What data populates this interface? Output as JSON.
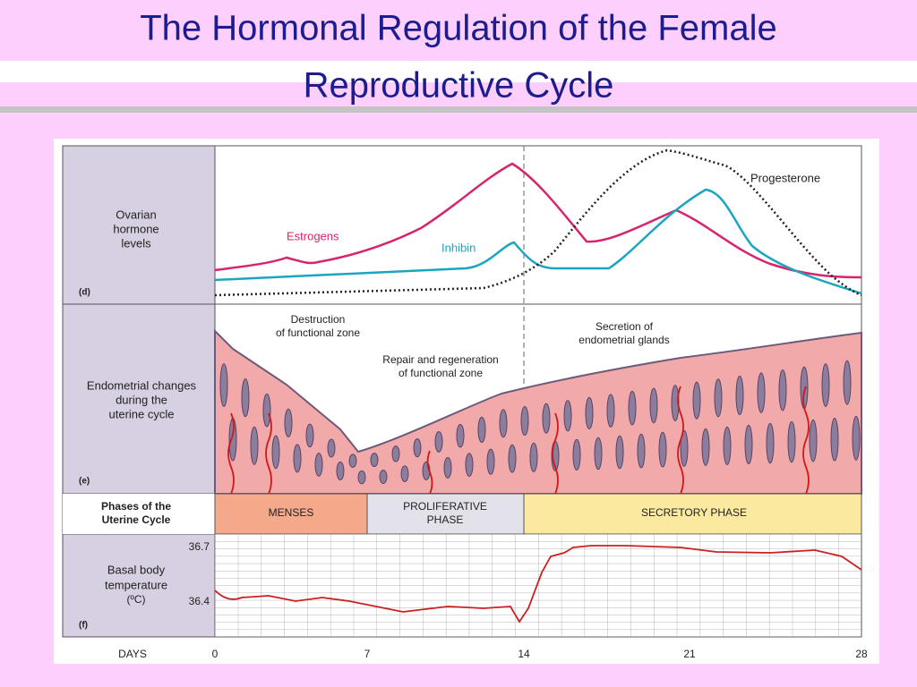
{
  "title": {
    "lines": [
      "The Hormonal Regulation of the Female",
      "Reproductive Cycle"
    ]
  },
  "panel_d": {
    "label": [
      "Ovarian",
      "hormone",
      "levels"
    ],
    "letter": "(d)",
    "curves": [
      "Estrogens",
      "Inhibin",
      "Progesterone"
    ]
  },
  "panel_e": {
    "label": [
      "Endometrial changes",
      "during the",
      "uterine cycle"
    ],
    "letter": "(e)",
    "annotations": [
      [
        "Destruction",
        "of functional zone"
      ],
      [
        "Repair and regeneration",
        "of functional zone"
      ],
      [
        "Secretion of",
        "endometrial glands"
      ]
    ]
  },
  "phases": {
    "label": [
      "Phases of the",
      "Uterine Cycle"
    ],
    "items": [
      [
        "MENSES"
      ],
      [
        "PROLIFERATIVE",
        "PHASE"
      ],
      [
        "SECRETORY PHASE"
      ]
    ]
  },
  "panel_f": {
    "label": [
      "Basal body",
      "temperature",
      "(ºC)"
    ],
    "letter": "(f)",
    "ticks": [
      "36.7",
      "36.4"
    ]
  },
  "days": {
    "label": "DAYS",
    "ticks": [
      "0",
      "7",
      "14",
      "21",
      "28"
    ]
  }
}
